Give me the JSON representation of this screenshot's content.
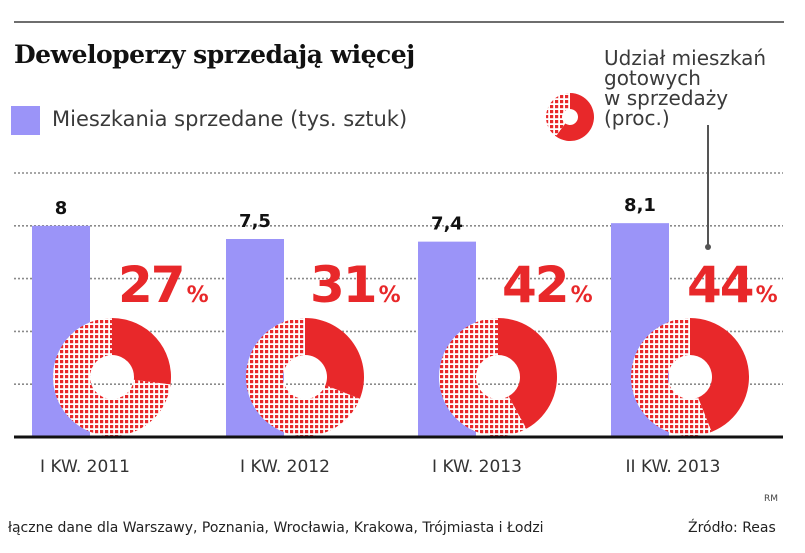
{
  "title": "Deweloperzy sprzedają więcej",
  "legend": {
    "bars_label": "Mieszkania sprzedane (tys. sztuk)",
    "donut_label_lines": [
      "Udział mieszkań",
      "gotowych",
      "w sprzedaży",
      "(proc.)"
    ]
  },
  "colors": {
    "bar": "#9b94f8",
    "share": "#e8282a",
    "grid": "#8a8a8a",
    "axis": "#111111"
  },
  "chart_data": {
    "type": "bar",
    "title": "Deweloperzy sprzedają więcej",
    "xlabel": "",
    "ylabel": "Mieszkania sprzedane (tys. sztuk)",
    "ylim": [
      0,
      10
    ],
    "grid": true,
    "gridline_values": [
      2,
      4,
      6,
      8,
      10
    ],
    "categories": [
      "I KW. 2011",
      "I KW. 2012",
      "I KW. 2013",
      "II KW. 2013"
    ],
    "series": [
      {
        "name": "Mieszkania sprzedane (tys. sztuk)",
        "type": "bar",
        "values": [
          8,
          7.5,
          7.4,
          8.1
        ],
        "labels": [
          "8",
          "7,5",
          "7,4",
          "8,1"
        ]
      },
      {
        "name": "Udział mieszkań gotowych w sprzedaży (proc.)",
        "type": "donut",
        "values": [
          27,
          31,
          42,
          44
        ],
        "labels": [
          "27",
          "31",
          "42",
          "44"
        ],
        "unit": "%"
      }
    ],
    "legend_placement": "top"
  },
  "footer": {
    "note": "łączne dane dla Warszawy, Poznania, Wrocławia, Krakowa, Trójmiasta i Łodzi",
    "source": "Źródło: Reas",
    "credit": "RM"
  }
}
